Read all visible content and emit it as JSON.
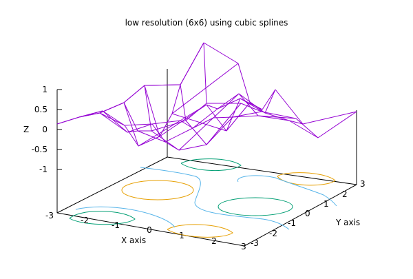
{
  "chart_data": {
    "type": "surface",
    "title": "low resolution (6x6) using cubic splines",
    "xlabel": "X axis",
    "ylabel": "Y axis",
    "zlabel": "Z",
    "xlim": [
      -3,
      3
    ],
    "ylim": [
      -3,
      3
    ],
    "zlim": [
      -1,
      1
    ],
    "x_ticks": [
      "-3",
      "-2",
      "-1",
      "0",
      "1",
      "2",
      "3"
    ],
    "y_ticks": [
      "-3",
      "-2",
      "-1",
      "0",
      "1",
      "2",
      "3"
    ],
    "z_ticks": [
      "1",
      "0.5",
      "0",
      "-0.5",
      "-1"
    ],
    "grid": false,
    "legend": "none",
    "colors": {
      "surface": "#9400d3",
      "contour_levels": [
        "#009e73",
        "#56b4e9",
        "#e69f00"
      ]
    }
  }
}
